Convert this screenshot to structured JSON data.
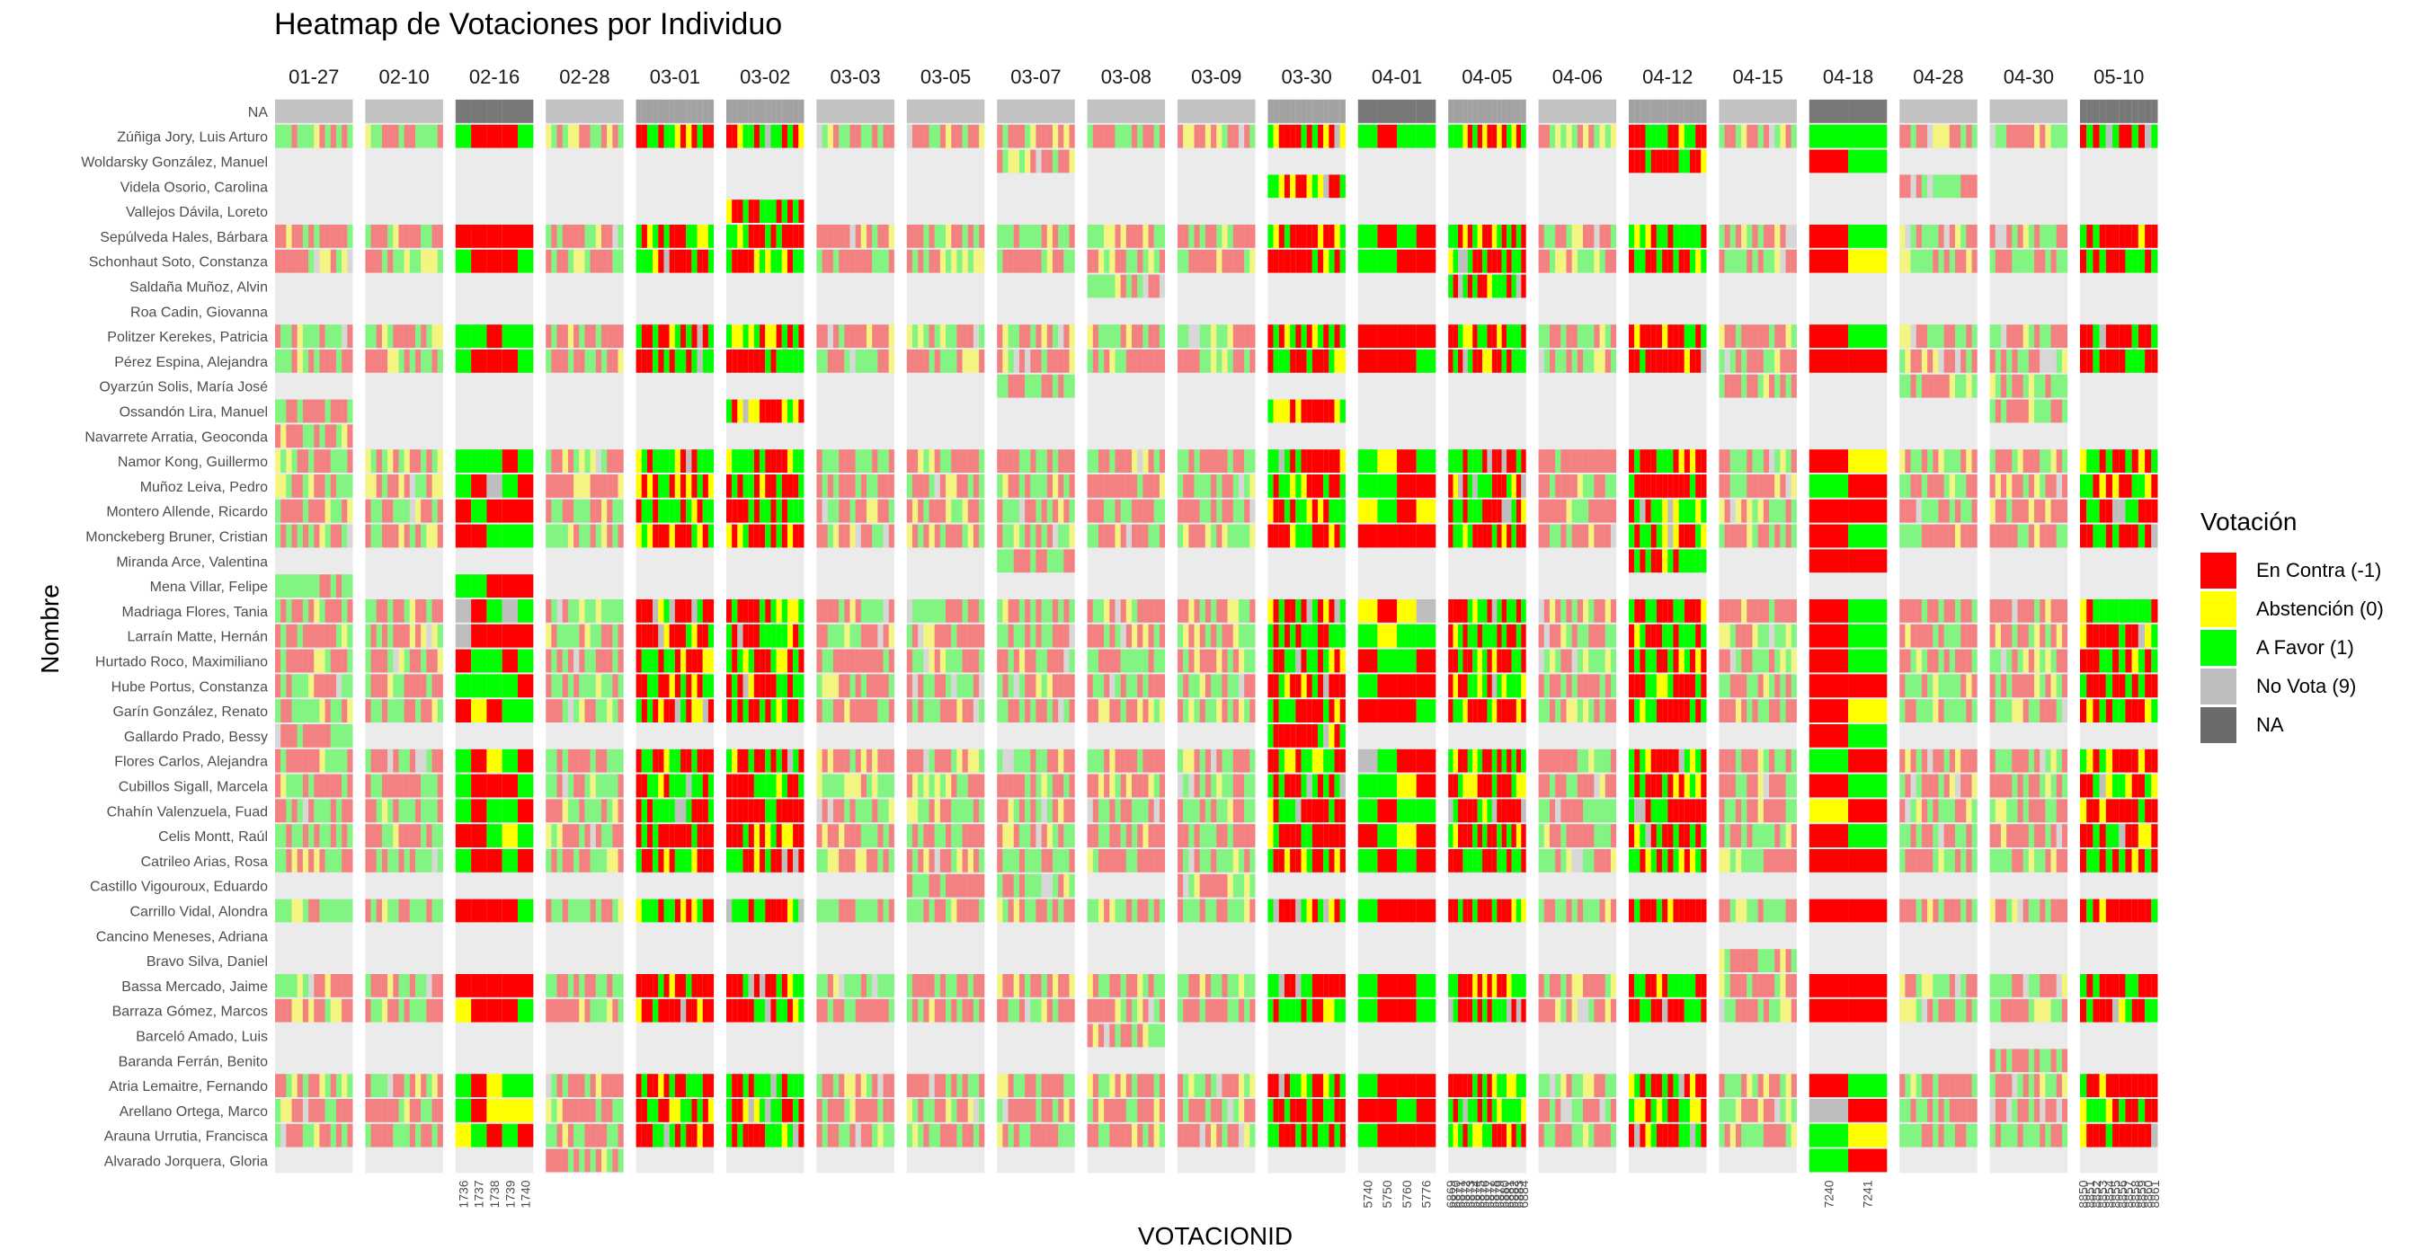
{
  "title": "Heatmap de Votaciones por Individuo",
  "chart_data": {
    "type": "heatmap",
    "title": "Heatmap de Votaciones por Individuo",
    "xlabel": "VOTACIONID",
    "ylabel": "Nombre",
    "facets": [
      "01-27",
      "02-10",
      "02-16",
      "02-28",
      "03-01",
      "03-02",
      "03-03",
      "03-05",
      "03-07",
      "03-08",
      "03-09",
      "03-30",
      "04-01",
      "04-05",
      "04-06",
      "04-12",
      "04-15",
      "04-18",
      "04-28",
      "04-30",
      "05-10"
    ],
    "rows": [
      "NA",
      "Zúñiga Jory, Luis Arturo",
      "Woldarsky González, Manuel",
      "Videla Osorio, Carolina",
      "Vallejos Dávila, Loreto",
      "Sepúlveda Hales, Bárbara",
      "Schonhaut Soto, Constanza",
      "Saldaña Muñoz, Alvin",
      "Roa Cadin, Giovanna",
      "Politzer Kerekes, Patricia",
      "Pérez Espina, Alejandra",
      "Oyarzún Solis, María José",
      "Ossandón Lira, Manuel",
      "Navarrete Arratia, Geoconda",
      "Namor Kong, Guillermo",
      "Muñoz Leiva, Pedro",
      "Montero Allende, Ricardo",
      "Monckeberg Bruner, Cristian",
      "Miranda Arce, Valentina",
      "Mena Villar, Felipe",
      "Madriaga Flores, Tania",
      "Larraín Matte, Hernán",
      "Hurtado Roco, Maximiliano",
      "Hube Portus, Constanza",
      "Garín González, Renato",
      "Gallardo Prado, Bessy",
      "Flores Carlos, Alejandra",
      "Cubillos Sigall, Marcela",
      "Chahín Valenzuela, Fuad",
      "Celis Montt, Raúl",
      "Catrileo Arias, Rosa",
      "Castillo Vigouroux, Eduardo",
      "Carrillo Vidal, Alondra",
      "Cancino Meneses, Adriana",
      "Bravo Silva, Daniel",
      "Bassa Mercado, Jaime",
      "Barraza Gómez, Marcos",
      "Barceló Amado, Luis",
      "Baranda Ferrán, Benito",
      "Atria Lemaitre, Fernando",
      "Arellano Ortega, Marco",
      "Arauna Urrutia, Francisca",
      "Alvarado Jorquera, Gloria"
    ],
    "x_ticks": {
      "02-16": [
        "1736",
        "1737",
        "1738",
        "1739",
        "1740"
      ],
      "04-01": [
        "5740",
        "5750",
        "5760",
        "5776"
      ],
      "04-05": [
        "6869",
        "6870",
        "6871",
        "6872",
        "6873",
        "6874",
        "6875",
        "6876",
        "6877",
        "6878",
        "6879",
        "6880",
        "6881",
        "6882",
        "6883",
        "6884"
      ],
      "04-18": [
        "7240",
        "7241"
      ],
      "05-10": [
        "8850",
        "8851",
        "8852",
        "8853",
        "8854",
        "8855",
        "8856",
        "8857",
        "8858",
        "8859",
        "8860",
        "8861"
      ]
    },
    "legend": {
      "title": "Votación",
      "position": "right",
      "items": [
        {
          "label": "En Contra (-1)",
          "color": "#ff0000"
        },
        {
          "label": "Abstención (0)",
          "color": "#ffff00"
        },
        {
          "label": "A Favor (1)",
          "color": "#00ff00"
        },
        {
          "label": "No Vota (9)",
          "color": "#bebebe"
        },
        {
          "label": "NA",
          "color": "#6b6b6b"
        }
      ]
    },
    "grid": true
  }
}
